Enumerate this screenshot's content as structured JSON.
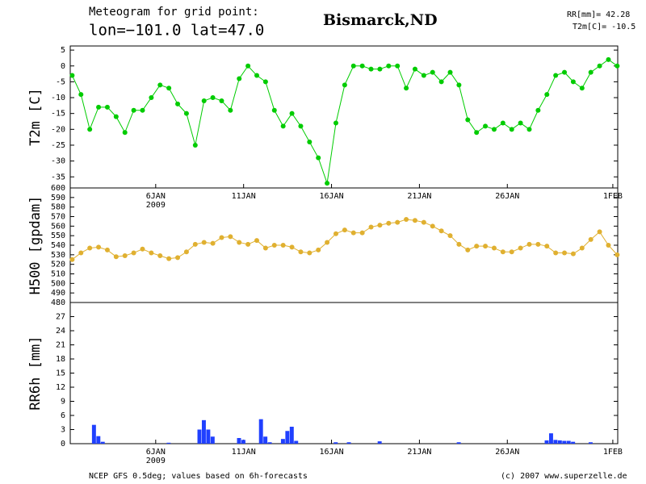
{
  "header": {
    "title_line1": "Meteogram for grid point:",
    "title_line2": "lon=−101.0  lat=47.0",
    "location": "Bismarck,ND",
    "rr_total": "RR[mm]= 42.28",
    "t2m_now": "T2m[C]= -10.5"
  },
  "footer": {
    "source": "NCEP GFS 0.5deg; values based on 6h-forecasts",
    "copyright": "(c) 2007 www.superzelle.de"
  },
  "chart_data": [
    {
      "type": "line",
      "y_label": "T2m [C]",
      "xlim": [
        1.14,
        32.28
      ],
      "ylim": [
        -38.5,
        6.3
      ],
      "yticks": [
        5,
        0,
        -5,
        -10,
        -15,
        -20,
        -25,
        -30,
        -35
      ],
      "xticks": [
        {
          "value": 6,
          "label": "6JAN"
        },
        {
          "value": 11,
          "label": "11JAN"
        },
        {
          "value": 16,
          "label": "16JAN"
        },
        {
          "value": 21,
          "label": "21JAN"
        },
        {
          "value": 26,
          "label": "26JAN"
        },
        {
          "value": 32,
          "label": "1FEB"
        }
      ],
      "year_label": "2009",
      "series": [
        {
          "name": "T2m",
          "color": "#00cc00",
          "x": [
            1.25,
            1.75,
            2.25,
            2.75,
            3.25,
            3.75,
            4.25,
            4.75,
            5.25,
            5.75,
            6.25,
            6.75,
            7.25,
            7.75,
            8.25,
            8.75,
            9.25,
            9.75,
            10.25,
            10.75,
            11.25,
            11.75,
            12.25,
            12.75,
            13.25,
            13.75,
            14.25,
            14.75,
            15.25,
            15.75,
            16.25,
            16.75,
            17.25,
            17.75,
            18.25,
            18.75,
            19.25,
            19.75,
            20.25,
            20.75,
            21.25,
            21.75,
            22.25,
            22.75,
            23.25,
            23.75,
            24.25,
            24.75,
            25.25,
            25.75,
            26.25,
            26.75,
            27.25,
            27.75,
            28.25,
            28.75,
            29.25,
            29.75,
            30.25,
            30.75,
            31.25,
            31.75,
            32.25
          ],
          "values": [
            -3,
            -9,
            -20,
            -13,
            -13,
            -16,
            -21,
            -14,
            -14,
            -10,
            -6,
            -7,
            -12,
            -15,
            -25,
            -11,
            -10,
            -11,
            -14,
            -4,
            0,
            -3,
            -5,
            -14,
            -19,
            -15,
            -19,
            -24,
            -29,
            -37,
            -18,
            -6,
            0,
            0,
            -1,
            -1,
            0,
            0,
            -7,
            -1,
            -3,
            -2,
            -5,
            -2,
            -6,
            -17,
            -21,
            -19,
            -20,
            -18,
            -20,
            -18,
            -20,
            -14,
            -9,
            -3,
            -2,
            -5,
            -7,
            -2,
            0,
            2,
            0
          ]
        }
      ]
    },
    {
      "type": "line",
      "y_label": "H500 [gpdam]",
      "xlim": [
        1.14,
        32.28
      ],
      "ylim": [
        480,
        600
      ],
      "yticks": [
        600,
        590,
        580,
        570,
        560,
        550,
        540,
        530,
        520,
        510,
        500,
        490,
        480
      ],
      "series": [
        {
          "name": "H500",
          "color": "#e0b030",
          "x": [
            1.25,
            1.75,
            2.25,
            2.75,
            3.25,
            3.75,
            4.25,
            4.75,
            5.25,
            5.75,
            6.25,
            6.75,
            7.25,
            7.75,
            8.25,
            8.75,
            9.25,
            9.75,
            10.25,
            10.75,
            11.25,
            11.75,
            12.25,
            12.75,
            13.25,
            13.75,
            14.25,
            14.75,
            15.25,
            15.75,
            16.25,
            16.75,
            17.25,
            17.75,
            18.25,
            18.75,
            19.25,
            19.75,
            20.25,
            20.75,
            21.25,
            21.75,
            22.25,
            22.75,
            23.25,
            23.75,
            24.25,
            24.75,
            25.25,
            25.75,
            26.25,
            26.75,
            27.25,
            27.75,
            28.25,
            28.75,
            29.25,
            29.75,
            30.25,
            30.75,
            31.25,
            31.75,
            32.25
          ],
          "values": [
            525,
            532,
            537,
            538,
            535,
            528,
            529,
            532,
            536,
            532,
            529,
            526,
            527,
            533,
            541,
            543,
            542,
            548,
            549,
            543,
            541,
            545,
            537,
            540,
            540,
            538,
            533,
            532,
            535,
            543,
            552,
            556,
            553,
            553,
            559,
            561,
            563,
            564,
            567,
            566,
            564,
            560,
            555,
            550,
            541,
            535,
            539,
            539,
            537,
            533,
            533,
            537,
            541,
            541,
            539,
            532,
            532,
            531,
            537,
            546,
            554,
            540,
            530
          ]
        }
      ]
    },
    {
      "type": "bar",
      "y_label": "RR6h [mm]",
      "xlim": [
        1.14,
        32.28
      ],
      "ylim": [
        0,
        30
      ],
      "yticks": [
        0,
        3,
        6,
        9,
        12,
        15,
        18,
        21,
        24,
        27
      ],
      "xticks": [
        {
          "value": 6,
          "label": "6JAN"
        },
        {
          "value": 11,
          "label": "11JAN"
        },
        {
          "value": 16,
          "label": "16JAN"
        },
        {
          "value": 21,
          "label": "21JAN"
        },
        {
          "value": 26,
          "label": "26JAN"
        },
        {
          "value": 32,
          "label": "1FEB"
        }
      ],
      "year_label": "2009",
      "bar_width": 0.25,
      "series": [
        {
          "name": "RR6h",
          "color": "#2040ff",
          "x": [
            2.5,
            2.75,
            3.0,
            6.75,
            8.5,
            8.75,
            9.0,
            9.25,
            10.75,
            11.0,
            12.0,
            12.25,
            12.5,
            13.25,
            13.5,
            13.75,
            14.0,
            16.25,
            17.0,
            18.75,
            23.25,
            28.25,
            28.5,
            28.75,
            29.0,
            29.25,
            29.5,
            29.75,
            30.75
          ],
          "values": [
            4,
            1.6,
            0.4,
            0.2,
            3,
            5,
            3,
            1.5,
            1.2,
            0.8,
            5.2,
            1.5,
            0.3,
            1.0,
            2.7,
            3.6,
            0.6,
            0.3,
            0.3,
            0.5,
            0.3,
            0.7,
            2.2,
            0.8,
            0.7,
            0.6,
            0.6,
            0.4,
            0.3
          ]
        }
      ]
    }
  ]
}
